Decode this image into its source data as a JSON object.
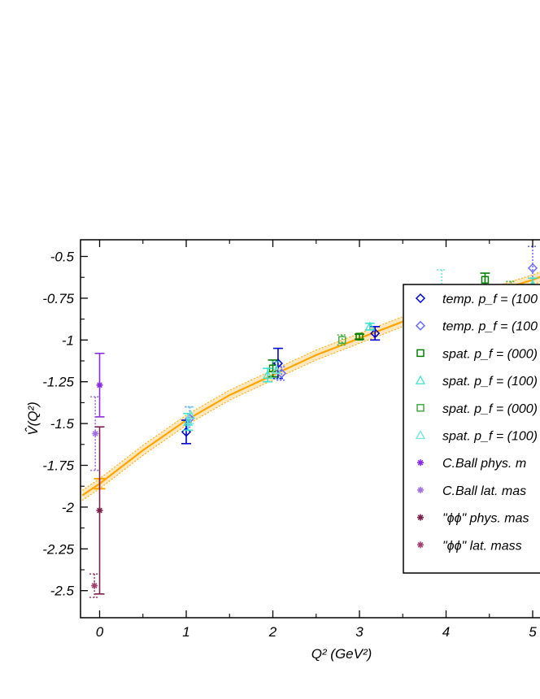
{
  "chart_data": {
    "type": "scatter",
    "title": "",
    "xlabel": "Q² (GeV²)",
    "ylabel": "V̂(Q²)",
    "xlim": [
      -0.2,
      5.1
    ],
    "ylim": [
      -2.6,
      -0.4
    ],
    "x_ticks": [
      0,
      1,
      2,
      3,
      4,
      5
    ],
    "x_tick_labels": [
      "0",
      "1",
      "2",
      "3",
      "4",
      "5"
    ],
    "y_ticks": [
      -2.5,
      -2.25,
      -2,
      -1.75,
      -1.5,
      -1.25,
      -1,
      -0.75,
      -0.5
    ],
    "y_tick_labels": [
      "-2.5",
      "-2.25",
      "-2",
      "-1.75",
      "-1.5",
      "-1.25",
      "-1",
      "-0.75",
      "-0.5"
    ],
    "grid": false,
    "legend_position": "right",
    "fit": {
      "color": "#ffa500",
      "x": [
        -0.2,
        0,
        0.5,
        1,
        1.5,
        2,
        2.5,
        3,
        3.5,
        4,
        4.5,
        5,
        5.1
      ],
      "y": [
        -1.93,
        -1.86,
        -1.66,
        -1.48,
        -1.33,
        -1.21,
        -1.09,
        -0.99,
        -0.89,
        -0.8,
        -0.72,
        -0.64,
        -0.62
      ],
      "band": 0.03
    },
    "series": [
      {
        "name": "temp. p_f = (100",
        "color": "#0000cd",
        "marker": "diamond",
        "line_style": "solid",
        "points": [
          {
            "x": 1.0,
            "y": -1.55,
            "err": 0.07
          },
          {
            "x": 2.06,
            "y": -1.14,
            "err": 0.09
          },
          {
            "x": 3.18,
            "y": -0.96,
            "err": 0.04
          }
        ]
      },
      {
        "name": "temp. p_f = (100",
        "color": "#6b6bff",
        "marker": "diamond",
        "line_style": "dotted",
        "points": [
          {
            "x": 1.04,
            "y": -1.47,
            "err": 0.07
          },
          {
            "x": 2.1,
            "y": -1.2,
            "err": 0.04
          },
          {
            "x": 5.0,
            "y": -0.57,
            "err": 0.13
          }
        ]
      },
      {
        "name": "spat. p_f = (000)",
        "color": "#008000",
        "marker": "square",
        "line_style": "solid",
        "points": [
          {
            "x": 2.0,
            "y": -1.17,
            "err": 0.05
          },
          {
            "x": 3.0,
            "y": -0.98,
            "err": 0.015
          },
          {
            "x": 3.68,
            "y": -0.83,
            "err": 0.05
          },
          {
            "x": 4.45,
            "y": -0.64,
            "err": 0.04
          }
        ]
      },
      {
        "name": "spat. p_f = (100)",
        "color": "#40e0d0",
        "marker": "triangle",
        "line_style": "solid",
        "points": [
          {
            "x": 1.02,
            "y": -1.49,
            "err": 0.05
          },
          {
            "x": 1.94,
            "y": -1.21,
            "err": 0.04
          },
          {
            "x": 3.12,
            "y": -0.92,
            "err": 0.02
          },
          {
            "x": 3.72,
            "y": -0.74,
            "err": 0.05
          },
          {
            "x": 4.27,
            "y": -0.73,
            "err": 0.02
          },
          {
            "x": 5.0,
            "y": -0.67,
            "err": 0.04
          }
        ]
      },
      {
        "name": "spat. p_f = (000)",
        "color": "#44aa44",
        "marker": "square",
        "line_style": "dotted",
        "points": [
          {
            "x": 2.8,
            "y": -1.0,
            "err": 0.03
          },
          {
            "x": 3.9,
            "y": -0.84,
            "err": 0.05
          },
          {
            "x": 4.75,
            "y": -0.7,
            "err": 0.05
          }
        ]
      },
      {
        "name": "spat. p_f = (100)",
        "color": "#70e6dc",
        "marker": "triangle",
        "line_style": "dotted",
        "points": [
          {
            "x": 1.05,
            "y": -1.45,
            "err": 0.05
          },
          {
            "x": 2.04,
            "y": -1.18,
            "err": 0.05
          },
          {
            "x": 3.95,
            "y": -0.71,
            "err": 0.13
          }
        ]
      },
      {
        "name": "C.Ball phys. m",
        "color": "#8a2be2",
        "marker": "star",
        "line_style": "solid",
        "points": [
          {
            "x": 0.0,
            "y": -1.27,
            "err": 0.19
          }
        ]
      },
      {
        "name": "C.Ball lat. mas",
        "color": "#a070e0",
        "marker": "star",
        "line_style": "dotted",
        "points": [
          {
            "x": -0.05,
            "y": -1.56,
            "err": 0.22
          }
        ]
      },
      {
        "name": "\"ϕϕ\" phys. mas",
        "color": "#7a1d4a",
        "marker": "star",
        "line_style": "solid",
        "points": [
          {
            "x": 0.0,
            "y": -2.02,
            "err": 0.5
          }
        ]
      },
      {
        "name": "\"ϕϕ\" lat. mass",
        "color": "#a04070",
        "marker": "star",
        "line_style": "dotted",
        "points": [
          {
            "x": -0.06,
            "y": -2.47,
            "err": 0.07
          }
        ]
      }
    ],
    "intercept_point": {
      "x": 0.0,
      "y": -1.86,
      "err": 0.03,
      "color": "#ffa500"
    }
  }
}
